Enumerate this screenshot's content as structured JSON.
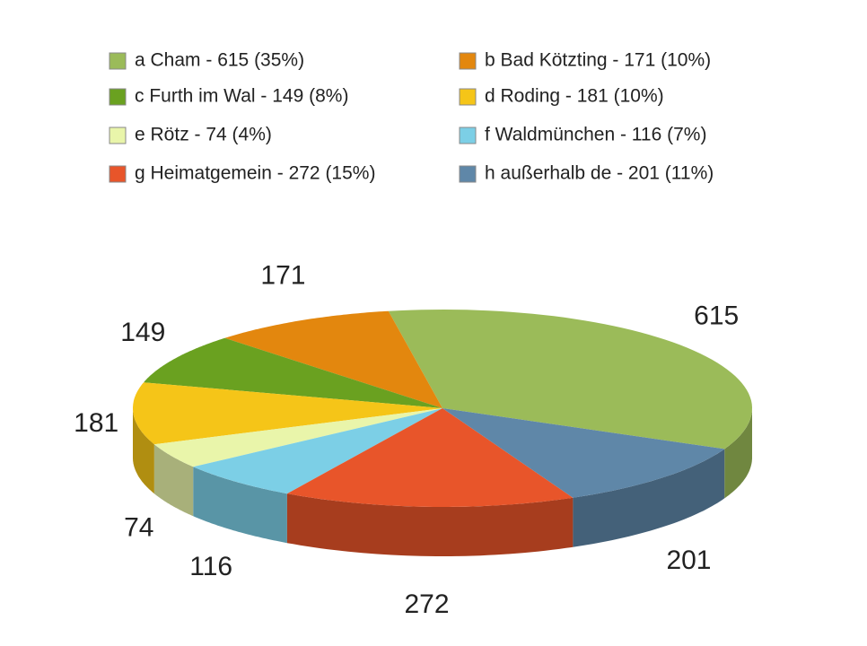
{
  "chart_data": {
    "type": "pie",
    "categories": [
      "a Cham - 615 (35%)",
      "b Bad Kötzting - 171 (10%)",
      "c Furth im Wal - 149 (8%)",
      "d Roding - 181 (10%)",
      "e Rötz - 74 (4%)",
      "f Waldmünchen - 116 (7%)",
      "g Heimatgemein - 272 (15%)",
      "h außerhalb de - 201 (11%)"
    ],
    "values": [
      615,
      171,
      149,
      181,
      74,
      116,
      272,
      201
    ],
    "colors": [
      "#9bbb59",
      "#e3870e",
      "#6aa120",
      "#f5c518",
      "#e9f5aa",
      "#7ccfe6",
      "#e8552a",
      "#5f87a8"
    ]
  }
}
